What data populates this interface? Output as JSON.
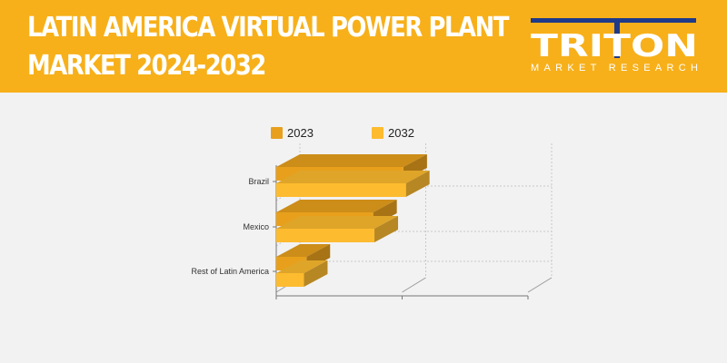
{
  "header": {
    "title_line1": "LATIN AMERICA VIRTUAL POWER PLANT",
    "title_line2": "MARKET 2024-2032",
    "background_color": "#f7b01a"
  },
  "logo": {
    "name": "TRITON",
    "tagline": "MARKET RESEARCH",
    "accent_color": "#1e3a8a"
  },
  "chart_data": {
    "type": "bar",
    "orientation": "horizontal",
    "style": "3d",
    "title": "",
    "xlabel": "",
    "ylabel": "",
    "categories": [
      "Brazil",
      "Mexico",
      "Rest of Latin America"
    ],
    "series": [
      {
        "name": "2023",
        "values": [
          50.5,
          38.5,
          12.0
        ],
        "color": "#e8a01c"
      },
      {
        "name": "2032",
        "values": [
          51.5,
          39.0,
          11.0
        ],
        "color": "#fdbb2f"
      }
    ],
    "xlim": [
      0,
      100
    ],
    "x_tick_labels_shown": false,
    "grid": true,
    "legend_position": "top"
  }
}
